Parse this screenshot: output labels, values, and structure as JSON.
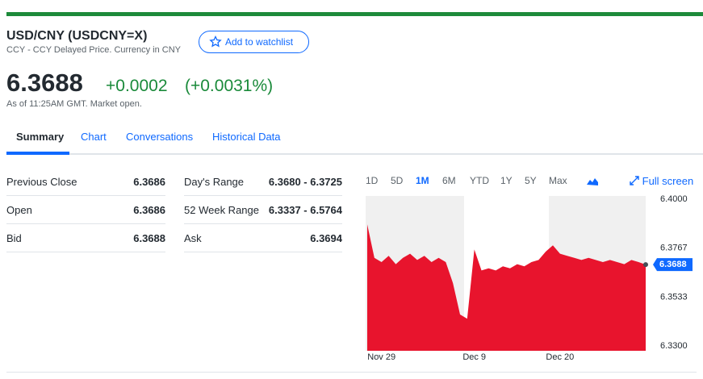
{
  "header": {
    "title": "USD/CNY (USDCNY=X)",
    "subtitle": "CCY - CCY Delayed Price. Currency in CNY",
    "watchlist": "Add to watchlist",
    "price": "6.3688",
    "change": "+0.0002",
    "change_percent": "(+0.0031%)",
    "time": "As of 11:25AM GMT. Market open."
  },
  "tabs": [
    "Summary",
    "Chart",
    "Conversations",
    "Historical Data"
  ],
  "quote_table": {
    "left": [
      [
        "Previous Close",
        "6.3686"
      ],
      [
        "Open",
        "6.3686"
      ],
      [
        "Bid",
        "6.3688"
      ]
    ],
    "right": [
      [
        "Day's Range",
        "6.3680 - 6.3725"
      ],
      [
        "52 Week Range",
        "6.3337 - 6.5764"
      ],
      [
        "Ask",
        "6.3694"
      ]
    ]
  },
  "range_buttons": [
    "1D",
    "5D",
    "1M",
    "6M",
    "YTD",
    "1Y",
    "5Y",
    "Max"
  ],
  "full_screen": "Full screen",
  "chart_data": {
    "type": "area",
    "categories": [
      null,
      null,
      "Nov 29",
      null,
      null,
      null,
      null,
      null,
      null,
      null,
      null,
      null,
      null,
      null,
      null,
      "Dec 9",
      null,
      null,
      null,
      null,
      null,
      null,
      null,
      null,
      null,
      null,
      null,
      "Dec 20",
      null,
      null,
      null,
      null,
      null,
      null,
      null,
      null,
      null,
      null,
      null,
      null
    ],
    "series": [
      {
        "color": "#e8142d",
        "values": [
          6.388,
          6.372,
          6.37,
          6.373,
          6.369,
          6.372,
          6.374,
          6.371,
          6.373,
          6.37,
          6.372,
          6.37,
          6.36,
          6.345,
          6.343,
          6.376,
          6.366,
          6.367,
          6.366,
          6.368,
          6.367,
          6.369,
          6.368,
          6.37,
          6.371,
          6.375,
          6.378,
          6.374,
          6.373,
          6.372,
          6.371,
          6.372,
          6.371,
          6.37,
          6.371,
          6.37,
          6.369,
          6.371,
          6.37,
          6.3688
        ]
      }
    ],
    "ylim": [
      6.33,
      6.4
    ],
    "yticks": [
      {
        "value": 6.4,
        "label": "6.4000"
      },
      6.3767,
      6.3533,
      {
        "value": 6.33,
        "label": "6.3300"
      }
    ]
  }
}
